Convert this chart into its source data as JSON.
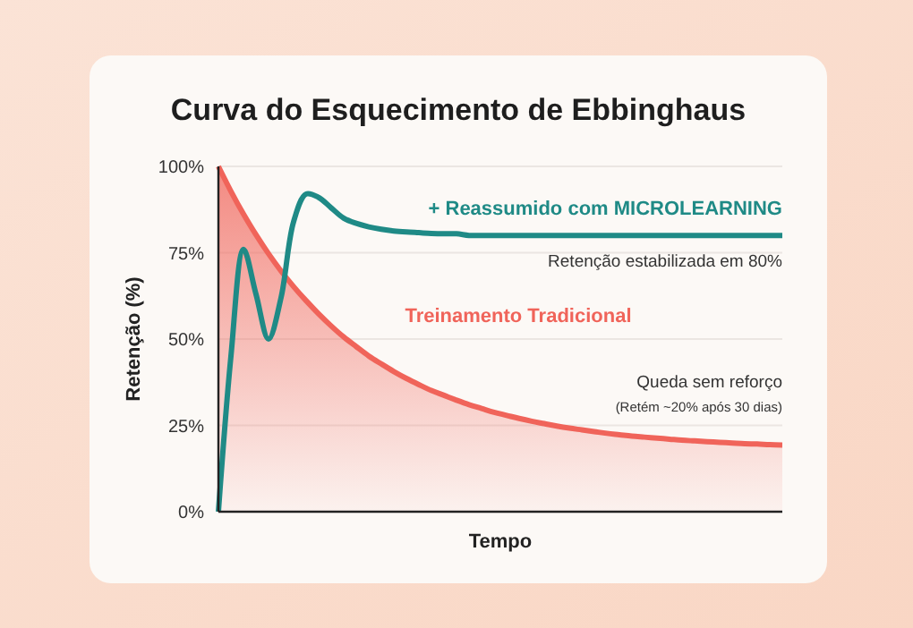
{
  "chart_data": {
    "type": "line",
    "title": "Curva do Esquecimento de Ebbinghaus",
    "xlabel": "Tempo",
    "ylabel": "Retenção (%)",
    "categories": [
      null,
      null,
      null,
      null,
      null,
      null,
      null,
      null,
      null,
      null,
      null,
      null,
      null,
      null,
      null,
      null,
      null,
      null,
      null,
      null,
      null,
      null,
      null,
      null,
      null,
      null,
      null,
      null,
      null,
      null,
      null,
      null,
      null,
      null,
      null,
      null,
      null,
      null,
      null,
      null,
      null,
      null,
      null,
      null,
      null,
      null
    ],
    "series": [
      {
        "name": "Treinamento Tradicional",
        "type": "area",
        "color": "#f0645a",
        "values": [
          100,
          92.8,
          86.2,
          80.2,
          74.7,
          69.7,
          65.2,
          61.1,
          57.3,
          53.8,
          50.6,
          47.8,
          45.1,
          42.8,
          40.6,
          38.6,
          36.8,
          35.1,
          33.7,
          32.3,
          31.0,
          29.9,
          28.8,
          27.9,
          27.0,
          26.2,
          25.5,
          24.8,
          24.2,
          23.7,
          23.2,
          22.7,
          22.3,
          21.9,
          21.6,
          21.3,
          21.0,
          20.7,
          20.5,
          20.3,
          20.1,
          19.9,
          19.7,
          19.6,
          19.4,
          19.3
        ]
      },
      {
        "name": "+ Reassumido com MICROLEARNING",
        "color": "#1f8a86",
        "values": [
          0,
          45,
          76,
          63,
          50,
          62,
          84,
          92,
          91,
          88,
          85,
          83.5,
          82.5,
          81.8,
          81.3,
          81,
          80.8,
          80.6,
          80.5,
          80.5,
          80,
          80,
          80,
          80,
          80,
          80,
          80,
          80,
          80,
          80,
          80,
          80,
          80,
          80,
          80,
          80,
          80,
          80,
          80,
          80,
          80,
          80,
          80,
          80,
          80,
          80
        ]
      }
    ],
    "ylim": [
      0,
      100
    ],
    "yticks": [
      {
        "value": 0,
        "label": "0%"
      },
      {
        "value": 25,
        "label": "25%"
      },
      {
        "value": 50,
        "label": "50%"
      },
      {
        "value": 75,
        "label": "75%"
      },
      {
        "value": 100,
        "label": "100%"
      }
    ],
    "grid": "y",
    "marker": "none",
    "line_style": "solid",
    "annotations": [
      "Retenção estabilizada em 80%",
      "Queda sem reforço",
      "(Retém ~20% após 30 dias)"
    ]
  }
}
